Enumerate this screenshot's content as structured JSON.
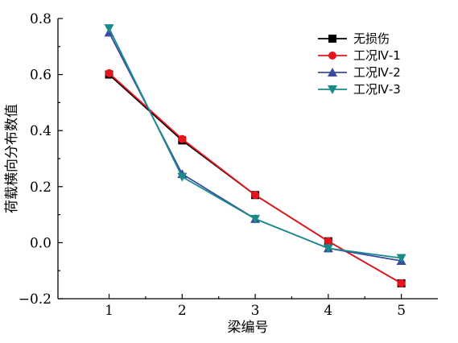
{
  "chart_data": {
    "type": "line",
    "title": "",
    "xlabel": "梁编号",
    "ylabel": "荷载横向分布数值",
    "x": [
      1,
      2,
      3,
      4,
      5
    ],
    "xlim": [
      0.3,
      5.5
    ],
    "ylim": [
      -0.2,
      0.8
    ],
    "xticks": [
      "1",
      "2",
      "3",
      "4",
      "5"
    ],
    "yticks": [
      "−0.2",
      "0.0",
      "0.2",
      "0.4",
      "0.6",
      "0.8"
    ],
    "ytick_values": [
      -0.2,
      0.0,
      0.2,
      0.4,
      0.6,
      0.8
    ],
    "grid": false,
    "legend_position": "top-right",
    "series": [
      {
        "name": "无损伤",
        "values": [
          0.6,
          0.365,
          0.17,
          0.005,
          -0.145
        ],
        "color": "#000000",
        "marker": "square"
      },
      {
        "name": "工况Ⅳ-1",
        "values": [
          0.605,
          0.37,
          0.17,
          0.005,
          -0.145
        ],
        "color": "#e8141c",
        "marker": "circle"
      },
      {
        "name": "工况Ⅳ-2",
        "values": [
          0.75,
          0.245,
          0.085,
          -0.02,
          -0.065
        ],
        "color": "#3a4ba0",
        "marker": "triangle-up"
      },
      {
        "name": "工况Ⅳ-3",
        "values": [
          0.765,
          0.235,
          0.085,
          -0.02,
          -0.055
        ],
        "color": "#1a8a8a",
        "marker": "triangle-down"
      }
    ]
  }
}
